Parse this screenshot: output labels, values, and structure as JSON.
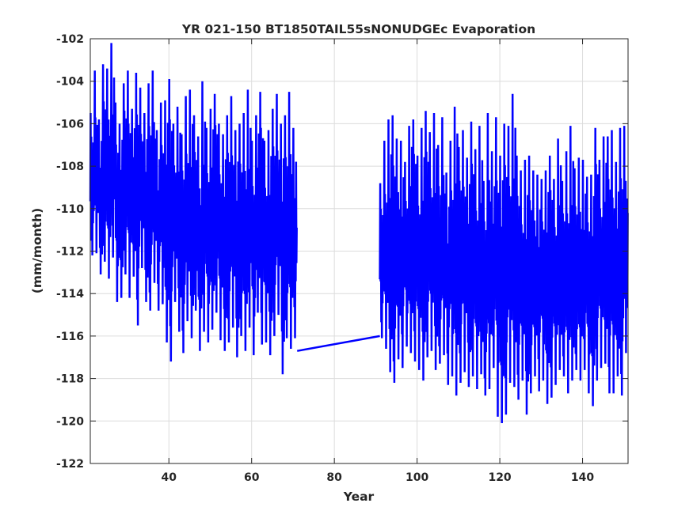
{
  "chart_data": {
    "type": "line",
    "title": "YR 021-150 BT1850TAIL55sNONUDGEc Evaporation",
    "xlabel": "Year",
    "ylabel": "(mm/month)",
    "xlim": [
      21,
      151
    ],
    "ylim": [
      -122,
      -102
    ],
    "xticks": [
      40,
      60,
      80,
      100,
      120,
      140
    ],
    "yticks": [
      -122,
      -120,
      -118,
      -116,
      -114,
      -112,
      -110,
      -108,
      -106,
      -104,
      -102
    ],
    "grid": true,
    "series_color": "#0000ff",
    "note": "monthly series summarized as annual max/min envelopes",
    "segments": [
      {
        "start_year": 21,
        "annual_max": [
          -105.5,
          -103.5,
          -105.8,
          -103.2,
          -103.4,
          -102.2,
          -105,
          -106,
          -104.1,
          -103.5,
          -105.3,
          -103.6,
          -104.3,
          -105.5,
          -104.1,
          -103.5,
          -106.3,
          -105,
          -104.9,
          -103.9,
          -106,
          -105.2,
          -106.5,
          -104.7,
          -104.4,
          -105.6,
          -106.6,
          -104,
          -106.2,
          -105.3,
          -104.6,
          -106,
          -106.5,
          -105.6,
          -104.7,
          -106.3,
          -106,
          -105.5,
          -104.4,
          -106.8,
          -105.6,
          -104.5,
          -106.8,
          -106.3,
          -105.3,
          -104.6,
          -106,
          -105.6,
          -104.5,
          -106.2
        ],
        "annual_min": [
          -112.2,
          -112.1,
          -113.1,
          -112.5,
          -113.3,
          -112.3,
          -114.4,
          -114.2,
          -113.1,
          -114.2,
          -113.2,
          -115.5,
          -112.8,
          -114.4,
          -114.8,
          -113.5,
          -114.8,
          -114.5,
          -116.3,
          -117.2,
          -114.4,
          -115.8,
          -116.8,
          -115.3,
          -116.1,
          -114.8,
          -116.7,
          -115.8,
          -116.3,
          -115.7,
          -114.9,
          -116.2,
          -116.7,
          -116.3,
          -115.6,
          -117,
          -116,
          -116.7,
          -115.6,
          -116.9,
          -114.9,
          -116.4,
          -116.3,
          -116.9,
          -116,
          -115,
          -117.8,
          -116.1,
          -116.6,
          -116.1
        ]
      },
      {
        "gap_line": [
          [
            71,
            -116.7
          ],
          [
            91,
            -116.0
          ]
        ]
      },
      {
        "start_year": 91,
        "annual_max": [
          -108.8,
          -106.8,
          -105.8,
          -105.6,
          -106.7,
          -106.8,
          -107.8,
          -106.1,
          -105.8,
          -107.5,
          -106.2,
          -105.4,
          -106.4,
          -105.5,
          -107,
          -105.7,
          -108.3,
          -106.8,
          -105.2,
          -107.1,
          -106.3,
          -107.6,
          -105.9,
          -107.2,
          -106.1,
          -108.7,
          -105.5,
          -107.3,
          -105.7,
          -107.5,
          -106,
          -106.1,
          -104.6,
          -107.5,
          -108.2,
          -107.7,
          -107.5,
          -108.2,
          -108.4,
          -108.6,
          -108.2,
          -107.5,
          -108.6,
          -106.7,
          -108.7,
          -107.3,
          -106.1,
          -108.1,
          -107.6,
          -107.7,
          -108.5,
          -108.4,
          -106.2,
          -107.7,
          -106.6,
          -106.6,
          -106.3,
          -107.8,
          -106.2,
          -106.1
        ],
        "annual_min": [
          -116.1,
          -116.6,
          -117.7,
          -118.2,
          -117.1,
          -117.5,
          -116.5,
          -116.8,
          -117.2,
          -117.6,
          -118.1,
          -117,
          -116.7,
          -117.6,
          -117.3,
          -116.9,
          -118.3,
          -117.9,
          -118.8,
          -118.2,
          -117.7,
          -118.4,
          -117.9,
          -118.5,
          -117.8,
          -118.8,
          -118.5,
          -117.5,
          -119.8,
          -120.1,
          -119.7,
          -118.2,
          -118.4,
          -119,
          -118.1,
          -119.7,
          -118.7,
          -117.9,
          -118.6,
          -118.1,
          -119.2,
          -118.9,
          -118.3,
          -117.6,
          -117.9,
          -118.7,
          -118.1,
          -117.6,
          -118.1,
          -117.6,
          -118.7,
          -119.3,
          -118.1,
          -117.5,
          -117.3,
          -118.7,
          -118.7,
          -117.9,
          -118.8,
          -116.8
        ]
      }
    ]
  }
}
